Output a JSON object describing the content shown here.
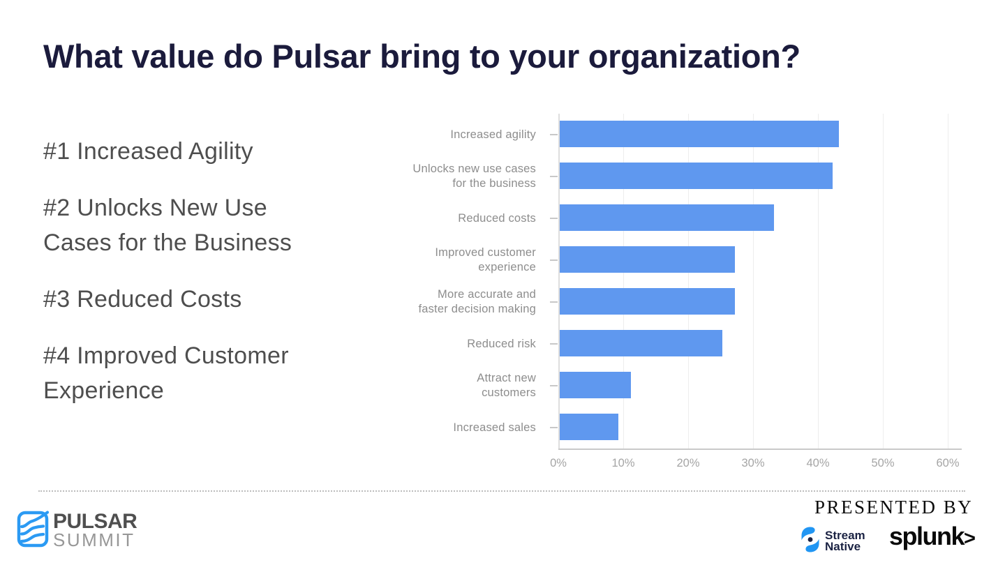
{
  "slide": {
    "title": "What value do Pulsar bring to your organization?",
    "bullets": [
      "#1 Increased Agility",
      "#2 Unlocks New Use\nCases for the Business",
      "#3 Reduced Costs",
      "#4 Improved Customer\nExperience"
    ]
  },
  "chart_data": {
    "type": "bar",
    "orientation": "horizontal",
    "title": "",
    "categories": [
      "Increased agility",
      "Unlocks new use cases\nfor the business",
      "Reduced costs",
      "Improved customer\nexperience",
      "More accurate and\nfaster decision making",
      "Reduced risk",
      "Attract new\ncustomers",
      "Increased sales"
    ],
    "values": [
      43,
      42,
      33,
      27,
      27,
      25,
      11,
      9
    ],
    "unit": "%",
    "xlabel": "",
    "ylabel": "",
    "xlim": [
      0,
      60
    ],
    "x_tick_labels": [
      "0%",
      "10%",
      "20%",
      "30%",
      "40%",
      "50%",
      "60%"
    ],
    "grid": "vertical",
    "legend": "none",
    "bar_color": "#5f98ef"
  },
  "footer": {
    "pulsar_summit": {
      "line1": "PULSAR",
      "line2": "SUMMIT"
    },
    "presented_by_label": "PRESENTED BY",
    "stream_native": {
      "line1": "Stream",
      "line2": "Native"
    },
    "splunk_label": "splunk",
    "splunk_chevron": ">"
  },
  "colors": {
    "title": "#1b1b3c",
    "body_text": "#4e4e4e",
    "bar": "#5f98ef",
    "category_label": "#8d8d8d",
    "axis_label": "#a5a5a5",
    "pulsar_blue": "#2b9af3",
    "stream_native_navy": "#1b2343"
  }
}
